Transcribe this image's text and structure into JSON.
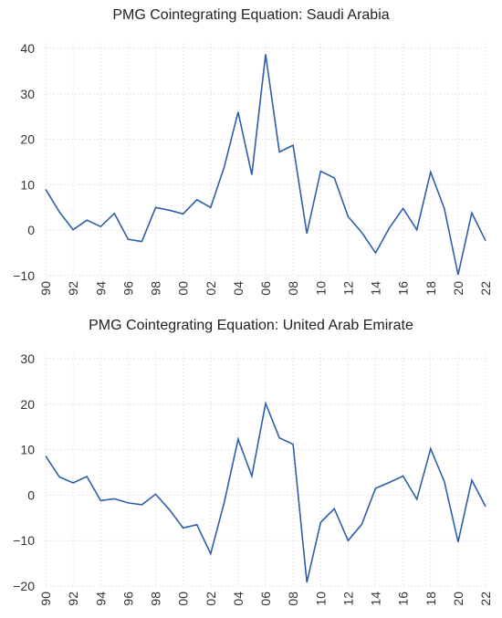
{
  "chart_data": [
    {
      "type": "line",
      "title": "PMG Cointegrating Equation: Saudi Arabia",
      "xlabel": "",
      "ylabel": "",
      "ylim": [
        -10,
        40
      ],
      "yticks": [
        -10,
        0,
        10,
        20,
        30,
        40
      ],
      "x": [
        "1990",
        "1991",
        "1992",
        "1993",
        "1994",
        "1995",
        "1996",
        "1997",
        "1998",
        "1999",
        "2000",
        "2001",
        "2002",
        "2003",
        "2004",
        "2005",
        "2006",
        "2007",
        "2008",
        "2009",
        "2010",
        "2011",
        "2012",
        "2013",
        "2014",
        "2015",
        "2016",
        "2017",
        "2018",
        "2019",
        "2020",
        "2021",
        "2022"
      ],
      "xtick_labels": [
        "90",
        "92",
        "94",
        "96",
        "98",
        "00",
        "02",
        "04",
        "06",
        "08",
        "10",
        "12",
        "14",
        "16",
        "18",
        "20",
        "22"
      ],
      "grid": true,
      "legend": "none",
      "series": [
        {
          "color": "#2e5fa7",
          "values": [
            9.0,
            4.0,
            0.1,
            2.2,
            0.8,
            3.7,
            -2.0,
            -2.5,
            5.0,
            4.4,
            3.6,
            6.7,
            5.0,
            14.0,
            26.0,
            12.2,
            38.7,
            17.2,
            18.7,
            -0.7,
            13.0,
            11.5,
            3.0,
            -0.5,
            -5.0,
            0.5,
            4.8,
            0.1,
            12.8,
            4.8,
            -9.8,
            3.8,
            -2.3
          ]
        }
      ]
    },
    {
      "type": "line",
      "title": "PMG Cointegrating Equation: United Arab Emirate",
      "xlabel": "",
      "ylabel": "",
      "ylim": [
        -20,
        30
      ],
      "yticks": [
        -20,
        -10,
        0,
        10,
        20,
        30
      ],
      "x": [
        "1990",
        "1991",
        "1992",
        "1993",
        "1994",
        "1995",
        "1996",
        "1997",
        "1998",
        "1999",
        "2000",
        "2001",
        "2002",
        "2003",
        "2004",
        "2005",
        "2006",
        "2007",
        "2008",
        "2009",
        "2010",
        "2011",
        "2012",
        "2013",
        "2014",
        "2015",
        "2016",
        "2017",
        "2018",
        "2019",
        "2020",
        "2021",
        "2022"
      ],
      "xtick_labels": [
        "90",
        "92",
        "94",
        "96",
        "98",
        "00",
        "02",
        "04",
        "06",
        "08",
        "10",
        "12",
        "14",
        "16",
        "18",
        "20",
        "22"
      ],
      "grid": true,
      "legend": "none",
      "series": [
        {
          "color": "#2e5fa7",
          "values": [
            8.6,
            4.0,
            2.7,
            4.1,
            -1.2,
            -0.8,
            -1.7,
            -2.1,
            0.2,
            -3.2,
            -7.2,
            -6.5,
            -12.9,
            -1.5,
            12.3,
            4.2,
            20.2,
            12.6,
            11.2,
            -19.2,
            -6.0,
            -3.0,
            -10.0,
            -6.4,
            1.5,
            2.8,
            4.2,
            -0.9,
            10.2,
            3.0,
            -10.3,
            3.3,
            -2.5
          ]
        }
      ]
    }
  ]
}
